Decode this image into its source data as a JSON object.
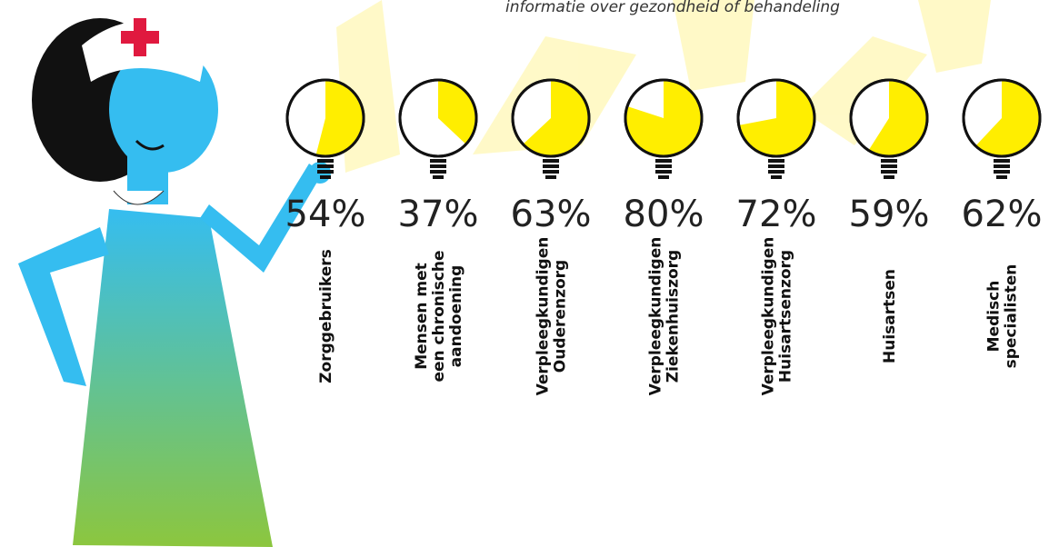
{
  "chart_data": {
    "type": "bulb",
    "subtitle": "informatie over gezondheid of behandeling",
    "categories": [
      "Zorggebruikers",
      "Mensen met\neen chronische\naandoening",
      "Verpleegkundigen\nOuderenzorg",
      "Verpleegkundigen\nZiekenhuiszorg",
      "Verpleegkundigen\nHuisartsenzorg",
      "Huisartsen",
      "Medisch\nspecialisten"
    ],
    "values": [
      54,
      37,
      63,
      80,
      72,
      59,
      62
    ],
    "value_labels": [
      "54%",
      "37%",
      "63%",
      "80%",
      "72%",
      "59%",
      "62%"
    ],
    "color": "#ffee00"
  }
}
